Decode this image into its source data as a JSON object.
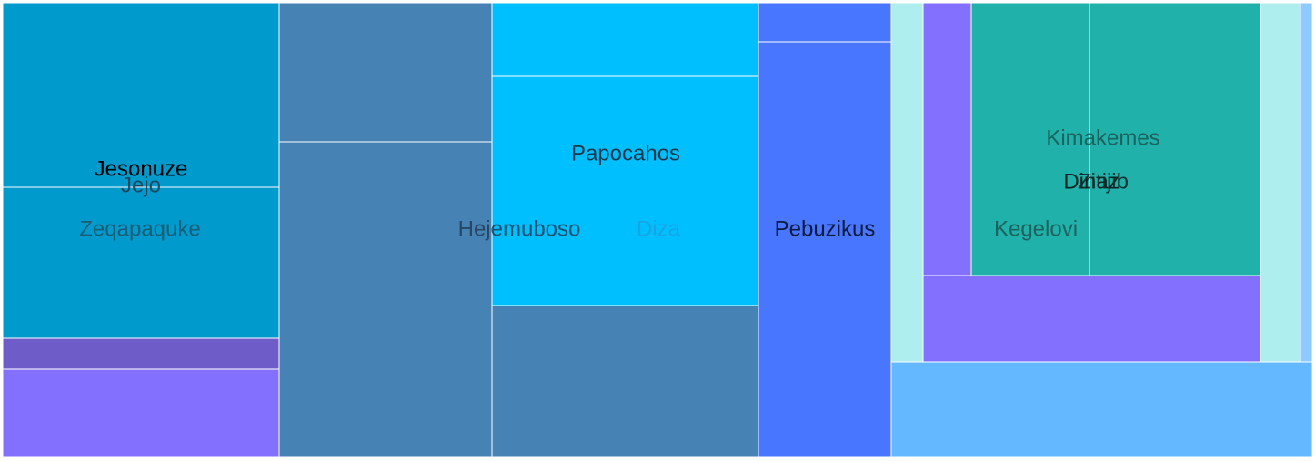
{
  "chart_data": {
    "type": "treemap",
    "nodes": [
      {
        "name": "Jesonuze",
        "color": "#009ACD",
        "text_color": "#000000",
        "opacity": 1
      },
      {
        "name": "Jejo",
        "color": "#009ACD",
        "text_color": "#1a3a4a",
        "opacity": 0.85
      },
      {
        "name": "Zeqapaquke",
        "color": "#009ACD",
        "text_color": "#1f4f60",
        "opacity": 0.8
      },
      {
        "name": "Hejemuboso",
        "color": "#4682B4",
        "text_color": "#243c55",
        "opacity": 0.85
      },
      {
        "name": "Diza",
        "color": "#00BFFF",
        "text_color": "#1aa3e0",
        "opacity": 0.9
      },
      {
        "name": "Papocahos",
        "color": "#00BFFF",
        "text_color": "#17384a",
        "opacity": 1
      },
      {
        "name": "Pebuzikus",
        "color": "#4876FF",
        "text_color": "#0d1a40",
        "opacity": 1
      },
      {
        "name": "Kimakemes",
        "color": "#20B2AA",
        "text_color": "#1c5551",
        "opacity": 0.85
      },
      {
        "name": "Dinaz",
        "color": "#20B2AA",
        "text_color": "#0f2523",
        "opacity": 1
      },
      {
        "name": "Zitijib",
        "color": "#20B2AA",
        "text_color": "#0f2523",
        "opacity": 0.9
      },
      {
        "name": "Kegelovi",
        "color": "#20B2AA",
        "text_color": "#1c5551",
        "opacity": 0.85
      },
      {
        "name": "",
        "color": "#8470FF",
        "text_color": "#000000",
        "opacity": 1
      },
      {
        "name": "",
        "color": "#AEEEEE",
        "text_color": "#000000",
        "opacity": 1
      },
      {
        "name": "",
        "color": "#63B8FF",
        "text_color": "#000000",
        "opacity": 1
      },
      {
        "name": "",
        "color": "#8EC9FF",
        "text_color": "#000000",
        "opacity": 1
      },
      {
        "name": "",
        "color": "#6E5CC8",
        "text_color": "#000000",
        "opacity": 1
      }
    ]
  }
}
